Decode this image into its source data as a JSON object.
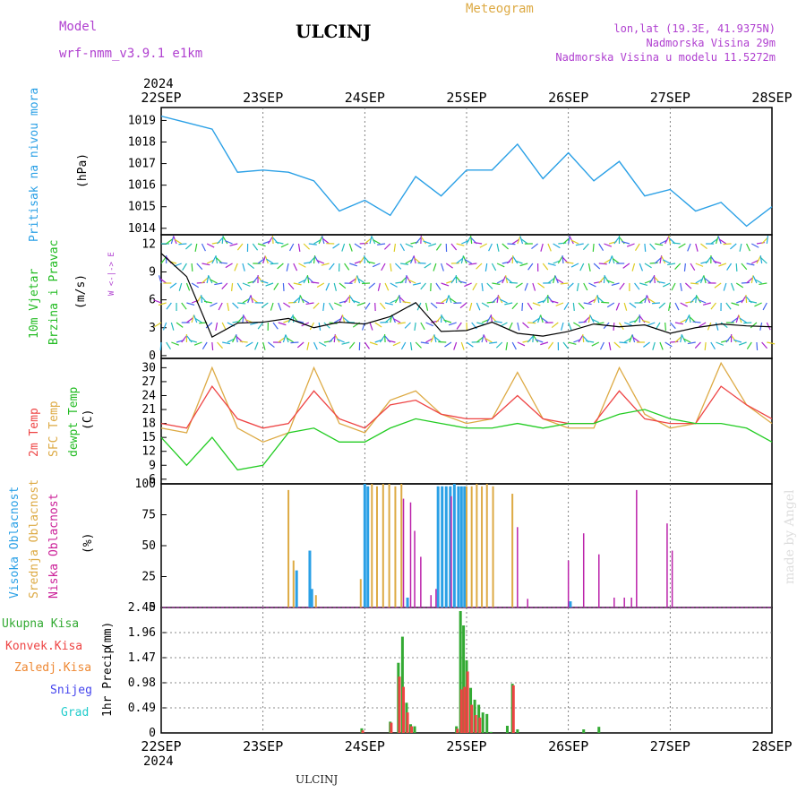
{
  "header": {
    "model_label": "Model",
    "model_name": "wrf-nmm_v3.9.1 e1km",
    "station": "ULCINJ",
    "meteogram_label": "Meteogram",
    "lonlat": "lon,lat (19.3E, 41.9375N)",
    "elevation": "Nadmorska Visina 29m",
    "model_elevation": "Nadmorska Visina u modelu 11.5272m",
    "footer_station": "ULCINJ",
    "credit": "made by Angel"
  },
  "colors": {
    "pressure": "#2aa0e6",
    "wind_label": "#22bb22",
    "temp_2m": "#ee4444",
    "temp_sfc": "#ddaa44",
    "dewpt": "#22cc22",
    "cloud_high": "#2aa0e6",
    "cloud_mid": "#ddaa44",
    "cloud_low": "#bb22aa",
    "precip_total": "#33aa33",
    "precip_conv": "#ee4444",
    "precip_frz": "#ee8833",
    "snow": "#4444ee",
    "graupel": "#22cccc"
  },
  "chart_data": [
    {
      "type": "line",
      "panel": "pressure",
      "ylabel_main": "Pritisak na nivou mora",
      "ylabel_unit": "(hPa)",
      "ylim": [
        1013.7,
        1019.6
      ],
      "yticks": [
        "1014",
        "1015",
        "1016",
        "1017",
        "1018",
        "1019"
      ],
      "x_top_labels": [
        "22SEP",
        "23SEP",
        "24SEP",
        "25SEP",
        "26SEP",
        "27SEP",
        "28SEP"
      ],
      "x_top_year": "2024",
      "x": [
        0,
        0.25,
        0.5,
        0.75,
        1,
        1.25,
        1.5,
        1.75,
        2,
        2.25,
        2.5,
        2.75,
        3,
        3.25,
        3.5,
        3.75,
        4,
        4.25,
        4.5,
        4.75,
        5,
        5.25,
        5.5,
        5.75,
        6
      ],
      "series": [
        {
          "values": [
            1019.2,
            1018.9,
            1018.6,
            1016.6,
            1016.7,
            1016.6,
            1016.2,
            1014.8,
            1015.3,
            1014.6,
            1016.4,
            1015.5,
            1016.7,
            1016.7,
            1017.9,
            1016.3,
            1017.5,
            1016.2,
            1017.1,
            1015.5,
            1015.8,
            1014.8,
            1015.2,
            1014.1,
            1015.0
          ]
        }
      ]
    },
    {
      "type": "line",
      "panel": "wind",
      "ylabel_main": "10m Vjetar",
      "ylabel_sub": "Brzina i Pravac",
      "ylabel_unit": "(m/s)",
      "compass": "W <-|-> E",
      "ylim": [
        -0.3,
        13
      ],
      "yticks": [
        "0",
        "3",
        "6",
        "9",
        "12"
      ],
      "x": [
        0,
        0.25,
        0.5,
        0.75,
        1,
        1.25,
        1.5,
        1.75,
        2,
        2.25,
        2.5,
        2.75,
        3,
        3.25,
        3.5,
        3.75,
        4,
        4.25,
        4.5,
        4.75,
        5,
        5.25,
        5.5,
        5.75,
        6
      ],
      "series": [
        {
          "values": [
            11,
            8.5,
            2,
            3.5,
            3.6,
            4,
            3,
            3.6,
            3.4,
            4.2,
            5.7,
            2.6,
            2.7,
            3.6,
            2.4,
            2.1,
            2.6,
            3.4,
            3.1,
            3.3,
            2.4,
            3.0,
            3.4,
            3.2,
            3.1
          ]
        }
      ]
    },
    {
      "type": "line",
      "panel": "temperature",
      "ylabel_1": "2m Temp",
      "ylabel_2": "SFC Temp",
      "ylabel_3": "dewpt Temp",
      "ylabel_unit": "(C)",
      "ylim": [
        5,
        32
      ],
      "yticks": [
        "6",
        "9",
        "12",
        "15",
        "18",
        "21",
        "24",
        "27",
        "30"
      ],
      "x": [
        0,
        0.25,
        0.5,
        0.75,
        1,
        1.25,
        1.5,
        1.75,
        2,
        2.25,
        2.5,
        2.75,
        3,
        3.25,
        3.5,
        3.75,
        4,
        4.25,
        4.5,
        4.75,
        5,
        5.25,
        5.5,
        5.75,
        6
      ],
      "series": [
        {
          "name": "2m Temp",
          "values": [
            18,
            17,
            26,
            19,
            17,
            18,
            25,
            19,
            17,
            22,
            23,
            20,
            19,
            19,
            24,
            19,
            18,
            18,
            25,
            19,
            18,
            18,
            26,
            22,
            19
          ]
        },
        {
          "name": "SFC Temp",
          "values": [
            17,
            16,
            30,
            17,
            14,
            16,
            30,
            18,
            16,
            23,
            25,
            20,
            18,
            19,
            29,
            19,
            17,
            17,
            30,
            20,
            17,
            18,
            31,
            22,
            18
          ]
        },
        {
          "name": "dewpt Temp",
          "values": [
            15,
            9,
            15,
            8,
            9,
            16,
            17,
            14,
            14,
            17,
            19,
            18,
            17,
            17,
            18,
            17,
            18,
            18,
            20,
            21,
            19,
            18,
            18,
            17,
            14
          ]
        }
      ]
    },
    {
      "type": "bar",
      "panel": "cloud",
      "ylabel_1": "Visoka Oblacnost",
      "ylabel_2": "Srednja Oblacnost",
      "ylabel_3": "Niska Oblacnost",
      "ylabel_unit": "(%)",
      "ylim": [
        0,
        100
      ],
      "yticks": [
        "0",
        "25",
        "50",
        "75",
        "100"
      ],
      "series": [
        {
          "name": "Visoka Oblacnost",
          "x": [
            1.33,
            1.46,
            1.48,
            2.0,
            2.03,
            2.42,
            2.72,
            2.76,
            2.8,
            2.84,
            2.88,
            2.92,
            2.95,
            2.98,
            4.02
          ],
          "values": [
            30,
            46,
            15,
            100,
            98,
            8,
            98,
            98,
            98,
            98,
            100,
            98,
            98,
            98,
            5
          ]
        },
        {
          "name": "Srednja Oblacnost",
          "x": [
            1.25,
            1.3,
            1.52,
            1.96,
            2.07,
            2.12,
            2.18,
            2.24,
            2.3,
            2.36,
            3.0,
            3.05,
            3.1,
            3.15,
            3.2,
            3.26,
            3.45
          ],
          "values": [
            95,
            38,
            10,
            23,
            100,
            98,
            100,
            100,
            98,
            100,
            98,
            98,
            100,
            98,
            100,
            98,
            92
          ]
        },
        {
          "name": "Niska Oblacnost",
          "x": [
            2.38,
            2.45,
            2.49,
            2.55,
            2.65,
            2.7,
            2.85,
            3.5,
            3.6,
            4.0,
            4.15,
            4.3,
            4.45,
            4.55,
            4.62,
            4.67,
            4.97,
            5.02
          ],
          "values": [
            88,
            85,
            62,
            41,
            10,
            15,
            90,
            65,
            7,
            38,
            60,
            43,
            8,
            8,
            8,
            95,
            68,
            46
          ]
        }
      ]
    },
    {
      "type": "bar",
      "panel": "precip",
      "legend": [
        "Ukupna Kisa",
        "Konvek.Kisa",
        "Zaledj.Kisa",
        "Snijeg",
        "Grad"
      ],
      "ylabel_main": "1hr Precip",
      "ylabel_unit": "(mm)",
      "ylim": [
        0,
        2.45
      ],
      "yticks": [
        "0",
        "0.49",
        "0.98",
        "1.47",
        "1.96",
        "2.45"
      ],
      "x_bottom_labels": [
        "22SEP",
        "23SEP",
        "24SEP",
        "25SEP",
        "26SEP",
        "27SEP",
        "28SEP"
      ],
      "x_bottom_year": "2024",
      "series": [
        {
          "name": "Ukupna Kisa",
          "x": [
            1.97,
            2.25,
            2.33,
            2.37,
            2.41,
            2.45,
            2.49,
            2.9,
            2.94,
            2.97,
            3.0,
            3.04,
            3.08,
            3.12,
            3.16,
            3.2,
            3.24,
            3.4,
            3.45,
            3.5,
            4.15,
            4.3
          ],
          "values": [
            0.09,
            0.22,
            1.37,
            1.88,
            0.59,
            0.17,
            0.13,
            0.13,
            2.38,
            2.1,
            1.42,
            0.88,
            0.65,
            0.55,
            0.4,
            0.37,
            0.02,
            0.14,
            0.96,
            0.07,
            0.07,
            0.12
          ]
        },
        {
          "name": "Konvek.Kisa",
          "x": [
            1.98,
            2.26,
            2.34,
            2.38,
            2.42,
            2.46,
            2.91,
            2.95,
            2.98,
            3.01,
            3.05,
            3.09,
            3.13,
            3.46
          ],
          "values": [
            0.05,
            0.2,
            1.1,
            0.9,
            0.4,
            0.13,
            0.08,
            0.85,
            0.9,
            1.2,
            0.55,
            0.35,
            0.3,
            0.93
          ]
        }
      ]
    }
  ]
}
